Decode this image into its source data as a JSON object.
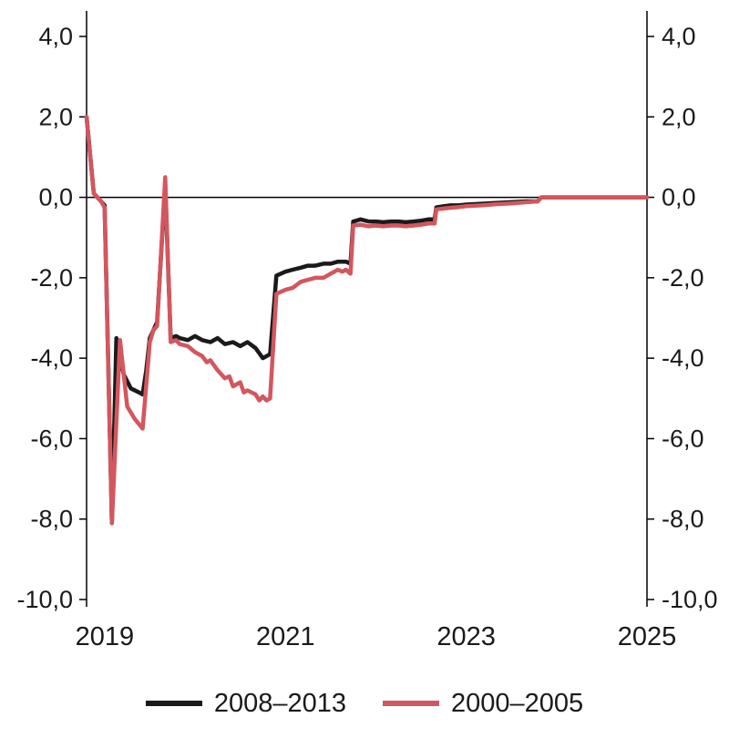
{
  "chart_data": {
    "type": "line",
    "title": "",
    "xlabel": "",
    "ylabel": "",
    "grid": false,
    "zero_line": true,
    "y_axis_labels_on_both_sides": true,
    "x_axis": {
      "range": [
        2018.8,
        2025.0
      ],
      "ticks": [
        2019,
        2021,
        2023,
        2025
      ],
      "tick_labels": [
        "2019",
        "2021",
        "2023",
        "2025"
      ]
    },
    "y_axis": {
      "range": [
        -10.0,
        4.0
      ],
      "tick_values": [
        4,
        2,
        0,
        -2,
        -4,
        -6,
        -8,
        -10
      ],
      "tick_labels": [
        "4,0",
        "2,0",
        "0,0",
        "-2,0",
        "-4,0",
        "-6,0",
        "-8,0",
        "-10,0"
      ]
    },
    "legend": {
      "position": "bottom",
      "entries": [
        {
          "label": "2008–2013",
          "color": "#1a1a1a"
        },
        {
          "label": "2000–2005",
          "color": "#d4565e"
        }
      ]
    },
    "colors": {
      "series_black": "#1a1a1a",
      "series_red": "#d4565e",
      "axis": "#000000",
      "text": "#1a1a1a"
    },
    "series": [
      {
        "name": "2008–2013",
        "color": "#1a1a1a",
        "points": [
          [
            2018.8,
            2.0
          ],
          [
            2018.88,
            0.1
          ],
          [
            2018.96,
            -0.1
          ],
          [
            2019.0,
            -0.2
          ],
          [
            2019.08,
            -8.1
          ],
          [
            2019.13,
            -3.5
          ],
          [
            2019.21,
            -4.4
          ],
          [
            2019.29,
            -4.75
          ],
          [
            2019.38,
            -4.85
          ],
          [
            2019.42,
            -4.9
          ],
          [
            2019.46,
            -4.3
          ],
          [
            2019.5,
            -3.5
          ],
          [
            2019.58,
            -3.1
          ],
          [
            2019.67,
            0.3
          ],
          [
            2019.73,
            -3.5
          ],
          [
            2019.79,
            -3.45
          ],
          [
            2019.83,
            -3.5
          ],
          [
            2019.92,
            -3.55
          ],
          [
            2020.0,
            -3.45
          ],
          [
            2020.08,
            -3.55
          ],
          [
            2020.17,
            -3.6
          ],
          [
            2020.25,
            -3.5
          ],
          [
            2020.33,
            -3.65
          ],
          [
            2020.42,
            -3.6
          ],
          [
            2020.5,
            -3.7
          ],
          [
            2020.58,
            -3.6
          ],
          [
            2020.67,
            -3.75
          ],
          [
            2020.75,
            -4.0
          ],
          [
            2020.83,
            -3.9
          ],
          [
            2020.9,
            -1.95
          ],
          [
            2021.0,
            -1.85
          ],
          [
            2021.08,
            -1.8
          ],
          [
            2021.17,
            -1.75
          ],
          [
            2021.25,
            -1.7
          ],
          [
            2021.33,
            -1.7
          ],
          [
            2021.42,
            -1.65
          ],
          [
            2021.5,
            -1.65
          ],
          [
            2021.58,
            -1.6
          ],
          [
            2021.67,
            -1.6
          ],
          [
            2021.72,
            -1.65
          ],
          [
            2021.75,
            -0.6
          ],
          [
            2021.83,
            -0.55
          ],
          [
            2021.92,
            -0.6
          ],
          [
            2022.0,
            -0.6
          ],
          [
            2022.08,
            -0.62
          ],
          [
            2022.17,
            -0.6
          ],
          [
            2022.25,
            -0.6
          ],
          [
            2022.33,
            -0.62
          ],
          [
            2022.42,
            -0.6
          ],
          [
            2022.5,
            -0.58
          ],
          [
            2022.58,
            -0.55
          ],
          [
            2022.65,
            -0.55
          ],
          [
            2022.67,
            -0.25
          ],
          [
            2022.75,
            -0.22
          ],
          [
            2022.83,
            -0.2
          ],
          [
            2022.92,
            -0.2
          ],
          [
            2023.0,
            -0.18
          ],
          [
            2023.17,
            -0.16
          ],
          [
            2023.33,
            -0.14
          ],
          [
            2023.5,
            -0.12
          ],
          [
            2023.67,
            -0.1
          ],
          [
            2023.79,
            -0.1
          ],
          [
            2023.83,
            0.0
          ],
          [
            2024.0,
            0.0
          ],
          [
            2024.25,
            0.0
          ],
          [
            2024.5,
            0.0
          ],
          [
            2024.75,
            0.0
          ],
          [
            2025.0,
            0.0
          ]
        ]
      },
      {
        "name": "2000–2005",
        "color": "#d4565e",
        "points": [
          [
            2018.8,
            2.0
          ],
          [
            2018.88,
            0.1
          ],
          [
            2018.96,
            -0.1
          ],
          [
            2019.0,
            -0.25
          ],
          [
            2019.08,
            -8.1
          ],
          [
            2019.17,
            -3.55
          ],
          [
            2019.25,
            -5.2
          ],
          [
            2019.33,
            -5.5
          ],
          [
            2019.42,
            -5.75
          ],
          [
            2019.5,
            -3.6
          ],
          [
            2019.54,
            -3.3
          ],
          [
            2019.58,
            -3.2
          ],
          [
            2019.67,
            0.5
          ],
          [
            2019.73,
            -3.6
          ],
          [
            2019.79,
            -3.55
          ],
          [
            2019.83,
            -3.65
          ],
          [
            2019.92,
            -3.7
          ],
          [
            2020.0,
            -3.85
          ],
          [
            2020.08,
            -3.95
          ],
          [
            2020.13,
            -4.1
          ],
          [
            2020.17,
            -4.05
          ],
          [
            2020.25,
            -4.3
          ],
          [
            2020.33,
            -4.5
          ],
          [
            2020.38,
            -4.45
          ],
          [
            2020.42,
            -4.7
          ],
          [
            2020.5,
            -4.6
          ],
          [
            2020.54,
            -4.85
          ],
          [
            2020.58,
            -4.8
          ],
          [
            2020.67,
            -4.9
          ],
          [
            2020.71,
            -5.05
          ],
          [
            2020.75,
            -4.95
          ],
          [
            2020.79,
            -5.05
          ],
          [
            2020.83,
            -5.0
          ],
          [
            2020.9,
            -2.4
          ],
          [
            2021.0,
            -2.3
          ],
          [
            2021.08,
            -2.25
          ],
          [
            2021.17,
            -2.1
          ],
          [
            2021.25,
            -2.05
          ],
          [
            2021.33,
            -2.0
          ],
          [
            2021.42,
            -2.0
          ],
          [
            2021.5,
            -1.9
          ],
          [
            2021.58,
            -1.8
          ],
          [
            2021.63,
            -1.85
          ],
          [
            2021.67,
            -1.8
          ],
          [
            2021.72,
            -1.9
          ],
          [
            2021.75,
            -0.7
          ],
          [
            2021.83,
            -0.68
          ],
          [
            2021.92,
            -0.72
          ],
          [
            2022.0,
            -0.7
          ],
          [
            2022.08,
            -0.72
          ],
          [
            2022.17,
            -0.7
          ],
          [
            2022.25,
            -0.7
          ],
          [
            2022.33,
            -0.72
          ],
          [
            2022.42,
            -0.7
          ],
          [
            2022.5,
            -0.68
          ],
          [
            2022.58,
            -0.65
          ],
          [
            2022.65,
            -0.65
          ],
          [
            2022.67,
            -0.3
          ],
          [
            2022.75,
            -0.28
          ],
          [
            2022.83,
            -0.26
          ],
          [
            2022.92,
            -0.24
          ],
          [
            2023.0,
            -0.22
          ],
          [
            2023.17,
            -0.2
          ],
          [
            2023.33,
            -0.17
          ],
          [
            2023.5,
            -0.15
          ],
          [
            2023.67,
            -0.12
          ],
          [
            2023.79,
            -0.1
          ],
          [
            2023.83,
            0.0
          ],
          [
            2024.0,
            0.0
          ],
          [
            2024.25,
            0.0
          ],
          [
            2024.5,
            0.0
          ],
          [
            2024.75,
            0.0
          ],
          [
            2025.0,
            0.0
          ]
        ]
      }
    ]
  }
}
